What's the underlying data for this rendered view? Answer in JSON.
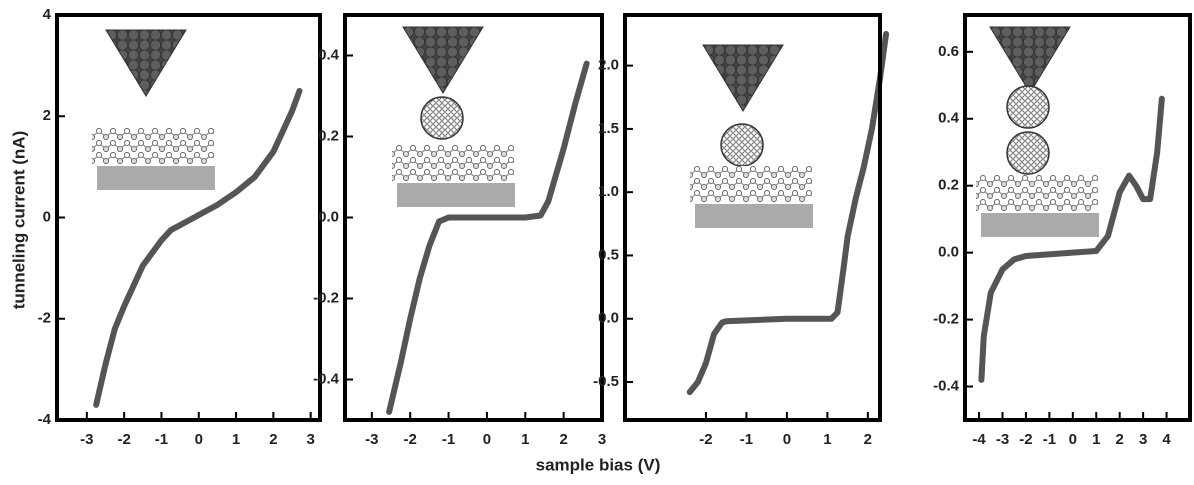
{
  "chart_data": [
    {
      "type": "line",
      "ylabel": "tunneling current (nA)",
      "xlabel": "sample bias (V)",
      "xlim": [
        -3.8,
        3.25
      ],
      "ylim": [
        -4,
        4
      ],
      "xticks": [
        -3,
        -2,
        -1,
        0,
        1,
        2,
        3
      ],
      "yticks": [
        4,
        2,
        0,
        -2,
        -4
      ],
      "series": [
        {
          "color": "#555555",
          "x": [
            -2.75,
            -2.5,
            -2.25,
            -2,
            -1.5,
            -1,
            -0.75,
            -0.5,
            0,
            0.5,
            1,
            1.5,
            2,
            2.5,
            2.7
          ],
          "values": [
            -3.7,
            -2.9,
            -2.2,
            -1.75,
            -0.95,
            -0.45,
            -0.25,
            -0.15,
            0.05,
            0.25,
            0.5,
            0.8,
            1.3,
            2.1,
            2.5
          ]
        }
      ]
    },
    {
      "type": "line",
      "xlim": [
        -3.7,
        3
      ],
      "ylim": [
        -0.5,
        0.5
      ],
      "xticks": [
        -3,
        -2,
        -1,
        0,
        1,
        2,
        3
      ],
      "yticks": [
        0.4,
        0.2,
        {
          "value": 0,
          "label": "0.0"
        },
        -0.2,
        -0.4
      ],
      "series": [
        {
          "color": "#555555",
          "x": [
            -2.55,
            -2.25,
            -2,
            -1.75,
            -1.5,
            -1.25,
            -1,
            0,
            1,
            1.4,
            1.6,
            2,
            2.3,
            2.6
          ],
          "values": [
            -0.48,
            -0.36,
            -0.25,
            -0.15,
            -0.07,
            -0.01,
            0,
            0,
            0,
            0.005,
            0.04,
            0.17,
            0.28,
            0.38
          ]
        }
      ]
    },
    {
      "type": "line",
      "xlim": [
        -4,
        2.3
      ],
      "ylim": [
        -0.8,
        2.4
      ],
      "xticks": [
        -2,
        -1,
        0,
        1,
        2
      ],
      "yticks": [
        {
          "value": 2,
          "label": "2.0"
        },
        1.5,
        {
          "value": 1,
          "label": "1.0"
        },
        0.5,
        {
          "value": 0,
          "label": "0.0"
        },
        -0.5
      ],
      "series": [
        {
          "color": "#555555",
          "x": [
            -2.4,
            -2.2,
            -2,
            -1.8,
            -1.6,
            -1.5,
            0,
            1.1,
            1.25,
            1.4,
            1.5,
            1.7,
            1.9,
            2.1,
            2.3,
            2.45
          ],
          "values": [
            -0.58,
            -0.5,
            -0.35,
            -0.12,
            -0.03,
            -0.02,
            0,
            0,
            0.05,
            0.4,
            0.65,
            0.95,
            1.2,
            1.5,
            1.9,
            2.25
          ]
        }
      ]
    },
    {
      "type": "line",
      "xlim": [
        -4.6,
        5.0
      ],
      "ylim": [
        -0.5,
        0.71
      ],
      "xticks": [
        -4,
        -3,
        -2,
        -1,
        0,
        1,
        2,
        3,
        4
      ],
      "yticks": [
        0.6,
        0.4,
        0.2,
        {
          "value": 0,
          "label": "0.0"
        },
        -0.2,
        -0.4
      ],
      "series": [
        {
          "color": "#555555",
          "x": [
            -3.9,
            -3.8,
            -3.5,
            -3,
            -2.5,
            -2,
            0,
            1,
            1.5,
            2,
            2.4,
            2.7,
            3,
            3.3,
            3.6,
            3.8
          ],
          "values": [
            -0.38,
            -0.25,
            -0.12,
            -0.05,
            -0.02,
            -0.01,
            0,
            0.005,
            0.05,
            0.18,
            0.23,
            0.2,
            0.16,
            0.16,
            0.3,
            0.46
          ]
        }
      ]
    }
  ]
}
